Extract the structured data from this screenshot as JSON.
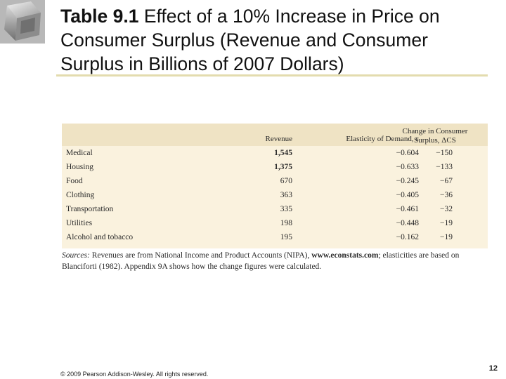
{
  "slide": {
    "title_bold": "Table 9.1",
    "title_rest": " Effect of a 10% Increase in Price on Consumer Surplus (Revenue and Consumer Surplus in Billions of 2007 Dollars)",
    "colors": {
      "rule": "#e3dcae",
      "table_bg": "#faf2de",
      "header_bg": "#efe3c4"
    }
  },
  "table": {
    "headers": {
      "revenue": "Revenue",
      "elasticity": "Elasticity of Demand, ε",
      "change_line1": "Change in Consumer",
      "change_line2": "Surplus, ΔCS"
    },
    "rows": [
      {
        "name": "Medical",
        "revenue": "1,545",
        "elasticity": "−0.604",
        "change": "−150"
      },
      {
        "name": "Housing",
        "revenue": "1,375",
        "elasticity": "−0.633",
        "change": "−133"
      },
      {
        "name": "Food",
        "revenue": "670",
        "elasticity": "−0.245",
        "change": "−67"
      },
      {
        "name": "Clothing",
        "revenue": "363",
        "elasticity": "−0.405",
        "change": "−36"
      },
      {
        "name": "Transportation",
        "revenue": "335",
        "elasticity": "−0.461",
        "change": "−32"
      },
      {
        "name": "Utilities",
        "revenue": "198",
        "elasticity": "−0.448",
        "change": "−19"
      },
      {
        "name": "Alcohol and tobacco",
        "revenue": "195",
        "elasticity": "−0.162",
        "change": "−19"
      }
    ],
    "sources": {
      "label": "Sources:",
      "text_a": " Revenues are from National Income and Product Accounts (NIPA), ",
      "url": "www.econstats.com",
      "text_b": "; elasticities are based on Blanciforti (1982). Appendix 9A shows how the change figures were calculated."
    }
  },
  "footer": {
    "copyright": "© 2009 Pearson Addison-Wesley. All rights reserved.",
    "page": "12"
  }
}
